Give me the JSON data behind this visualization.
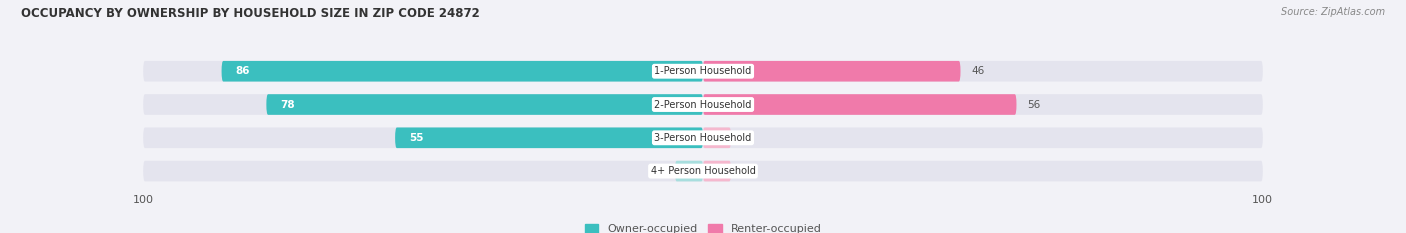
{
  "title": "OCCUPANCY BY OWNERSHIP BY HOUSEHOLD SIZE IN ZIP CODE 24872",
  "source": "Source: ZipAtlas.com",
  "categories": [
    "1-Person Household",
    "2-Person Household",
    "3-Person Household",
    "4+ Person Household"
  ],
  "owner_values": [
    86,
    78,
    55,
    0
  ],
  "renter_values": [
    46,
    56,
    0,
    0
  ],
  "owner_color": "#3bbfbf",
  "renter_color": "#f07aaa",
  "owner_label": "Owner-occupied",
  "renter_label": "Renter-occupied",
  "owner_zero_color": "#a8dede",
  "renter_zero_color": "#f5b8ce",
  "axis_max": 100,
  "bg_color": "#f2f2f7",
  "bar_bg_color": "#e4e4ee",
  "figsize": [
    14.06,
    2.33
  ],
  "dpi": 100
}
